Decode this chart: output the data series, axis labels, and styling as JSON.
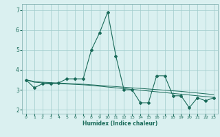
{
  "xlabel": "Humidex (Indice chaleur)",
  "x_values": [
    0,
    1,
    2,
    3,
    4,
    5,
    6,
    7,
    8,
    9,
    10,
    11,
    12,
    13,
    14,
    15,
    16,
    17,
    18,
    19,
    20,
    21,
    22,
    23
  ],
  "series_main": [
    3.5,
    3.1,
    3.3,
    3.3,
    3.35,
    3.55,
    3.55,
    3.55,
    5.0,
    5.85,
    6.9,
    4.7,
    3.0,
    3.0,
    2.35,
    2.35,
    3.7,
    3.7,
    2.7,
    2.7,
    2.1,
    2.6,
    2.45,
    2.6
  ],
  "series_trend1": [
    3.5,
    3.38,
    3.35,
    3.33,
    3.31,
    3.29,
    3.27,
    3.25,
    3.22,
    3.18,
    3.14,
    3.1,
    3.06,
    3.02,
    2.98,
    2.94,
    2.9,
    2.86,
    2.82,
    2.78,
    2.74,
    2.7,
    2.66,
    2.62
  ],
  "series_trend2": [
    3.5,
    3.42,
    3.38,
    3.36,
    3.34,
    3.32,
    3.3,
    3.28,
    3.25,
    3.22,
    3.19,
    3.16,
    3.13,
    3.1,
    3.07,
    3.04,
    3.01,
    2.98,
    2.95,
    2.92,
    2.88,
    2.84,
    2.8,
    2.76
  ],
  "line_color": "#1a6b5a",
  "bg_color": "#daf0f0",
  "grid_color": "#a0cccc",
  "ylim": [
    1.8,
    7.3
  ],
  "yticks": [
    2,
    3,
    4,
    5,
    6,
    7
  ],
  "xticks": [
    0,
    1,
    2,
    3,
    4,
    5,
    6,
    7,
    8,
    9,
    10,
    11,
    12,
    13,
    14,
    15,
    16,
    17,
    18,
    19,
    20,
    21,
    22,
    23
  ]
}
